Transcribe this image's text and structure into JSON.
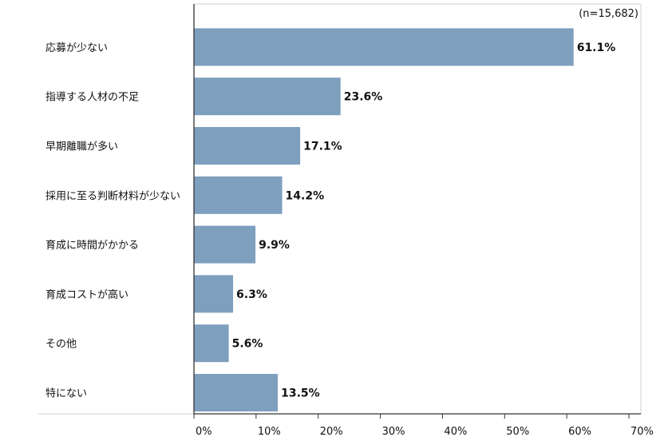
{
  "chart_data": {
    "type": "bar",
    "orientation": "horizontal",
    "note": "(n=15,682)",
    "categories": [
      "応募が少ない",
      "指導する人材の不足",
      "早期離職が多い",
      "採用に至る判断材料が少ない",
      "育成に時間がかかる",
      "育成コストが高い",
      "その他",
      "特にない"
    ],
    "values": [
      61.1,
      23.6,
      17.1,
      14.2,
      9.9,
      6.3,
      5.6,
      13.5
    ],
    "value_labels": [
      "61.1%",
      "23.6%",
      "17.1%",
      "14.2%",
      "9.9%",
      "6.3%",
      "5.6%",
      "13.5%"
    ],
    "xlim": [
      0,
      70
    ],
    "ticks": [
      0,
      10,
      20,
      30,
      40,
      50,
      60,
      70
    ],
    "tick_labels": [
      "0%",
      "10%",
      "20%",
      "30%",
      "40%",
      "50%",
      "60%",
      "70%"
    ],
    "grid": false,
    "bar_color": "#7f9fbf"
  }
}
